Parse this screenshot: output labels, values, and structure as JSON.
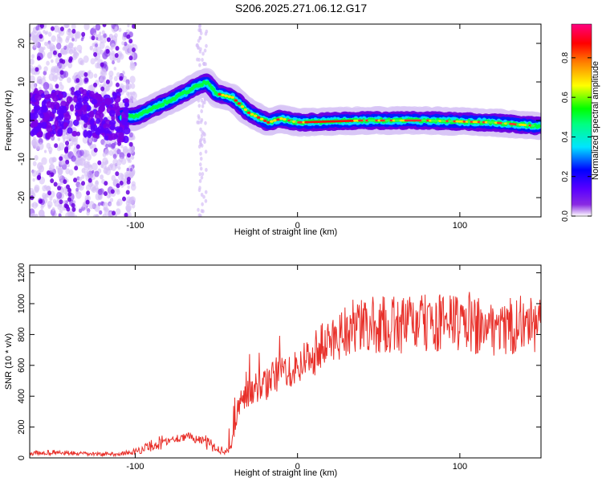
{
  "title": "S206.2025.271.06.12.G17",
  "colors": {
    "snr_line": "#e8302a",
    "axis": "#000000"
  },
  "chart_data": [
    {
      "type": "heatmap",
      "xlabel": "Height of straight line (km)",
      "ylabel": "Frequency (Hz)",
      "xlim": [
        -165,
        150
      ],
      "ylim": [
        -25,
        25
      ],
      "x_ticks": [
        -100,
        0,
        100
      ],
      "y_ticks": [
        -20,
        -10,
        0,
        10,
        20
      ],
      "colorbar": {
        "label": "Normalized spectral amplitude",
        "range": [
          0,
          0.97
        ],
        "ticks": [
          "0.0",
          "0.2",
          "0.4",
          "0.6",
          "0.8"
        ],
        "colormap": [
          "#e8d6fa",
          "#7a00e6",
          "#0000ff",
          "#00e5ff",
          "#00ff00",
          "#ffff00",
          "#ff8000",
          "#ff0000",
          "#ff0080"
        ]
      },
      "ridge": [
        {
          "x": -165,
          "y": 2
        },
        {
          "x": -140,
          "y": 2
        },
        {
          "x": -110,
          "y": 1
        },
        {
          "x": -100,
          "y": 1
        },
        {
          "x": -90,
          "y": 3
        },
        {
          "x": -80,
          "y": 5
        },
        {
          "x": -70,
          "y": 7
        },
        {
          "x": -62,
          "y": 9
        },
        {
          "x": -56,
          "y": 10
        },
        {
          "x": -50,
          "y": 7
        },
        {
          "x": -40,
          "y": 6
        },
        {
          "x": -35,
          "y": 4
        },
        {
          "x": -30,
          "y": 2
        },
        {
          "x": -25,
          "y": 1
        },
        {
          "x": -18,
          "y": -0.5
        },
        {
          "x": -10,
          "y": 0.5
        },
        {
          "x": 0,
          "y": -0.5
        },
        {
          "x": 40,
          "y": 0
        },
        {
          "x": 80,
          "y": 0
        },
        {
          "x": 120,
          "y": -0.5
        },
        {
          "x": 150,
          "y": -1.5
        }
      ]
    },
    {
      "type": "line",
      "xlabel": "Height of straight line (km)",
      "ylabel": "SNR (10 * v/v)",
      "xlim": [
        -165,
        150
      ],
      "ylim": [
        0,
        1250
      ],
      "x_ticks": [
        -100,
        0,
        100
      ],
      "y_ticks": [
        0,
        200,
        400,
        600,
        800,
        1000,
        1200
      ],
      "series": [
        {
          "name": "",
          "x": [
            -165,
            -150,
            -130,
            -110,
            -100,
            -90,
            -80,
            -70,
            -60,
            -50,
            -42,
            -38,
            -35,
            -30,
            -25,
            -20,
            -15,
            -10,
            -5,
            0,
            5,
            10,
            15,
            20,
            25,
            30,
            40,
            50,
            60,
            70,
            80,
            90,
            100,
            110,
            120,
            130,
            140,
            150
          ],
          "y": [
            30,
            35,
            25,
            25,
            40,
            80,
            110,
            140,
            120,
            60,
            40,
            200,
            380,
            430,
            460,
            470,
            520,
            560,
            580,
            600,
            640,
            680,
            720,
            750,
            800,
            840,
            850,
            860,
            860,
            870,
            870,
            870,
            880,
            860,
            850,
            850,
            870,
            850
          ]
        }
      ]
    }
  ]
}
